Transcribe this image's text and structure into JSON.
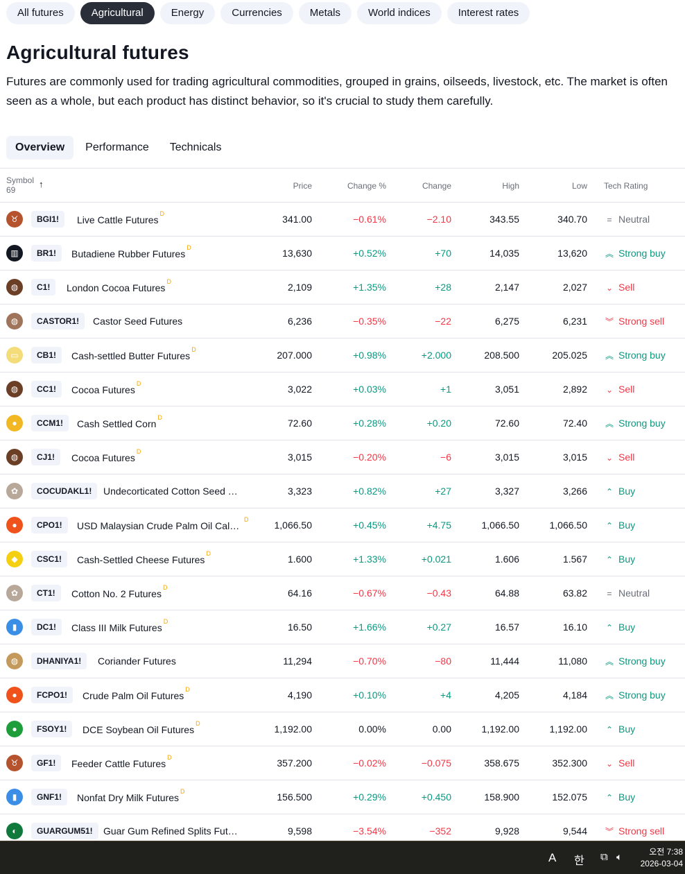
{
  "category_pills": [
    {
      "label": "All futures",
      "active": false
    },
    {
      "label": "Agricultural",
      "active": true
    },
    {
      "label": "Energy",
      "active": false
    },
    {
      "label": "Currencies",
      "active": false
    },
    {
      "label": "Metals",
      "active": false
    },
    {
      "label": "World indices",
      "active": false
    },
    {
      "label": "Interest rates",
      "active": false
    }
  ],
  "page": {
    "title": "Agricultural futures",
    "description": "Futures are commonly used for trading agricultural commodities, grouped in grains, oilseeds, livestock, etc. The market is often seen as a whole, but each product has distinct behavior, so it's crucial to study them carefully."
  },
  "tabs": [
    {
      "label": "Overview",
      "active": true
    },
    {
      "label": "Performance",
      "active": false
    },
    {
      "label": "Technicals",
      "active": false
    }
  ],
  "table": {
    "headers": {
      "symbol": "Symbol",
      "count": "69",
      "sort_arrow": "↑",
      "price": "Price",
      "change_pct": "Change %",
      "change": "Change",
      "high": "High",
      "low": "Low",
      "tech_rating": "Tech Rating"
    },
    "rows": [
      {
        "symbol": "BGI1!",
        "name": "Live Cattle Futures",
        "delayed": "D",
        "icon": "cow-icon",
        "icon_color": "#b5532e",
        "icon_glyph": "♉",
        "price": "341.00",
        "change_pct": "−0.61%",
        "change": "−2.10",
        "high": "343.55",
        "low": "340.70",
        "rating": "Neutral",
        "rating_icon": "=",
        "direction": "neg",
        "rating_class": "neu"
      },
      {
        "symbol": "BR1!",
        "name": "Butadiene Rubber Futures",
        "delayed": "D",
        "icon": "rubber-icon",
        "icon_color": "#131722",
        "icon_glyph": "▥",
        "price": "13,630",
        "change_pct": "+0.52%",
        "change": "+70",
        "high": "14,035",
        "low": "13,620",
        "rating": "Strong buy",
        "rating_icon": "︽",
        "direction": "pos",
        "rating_class": "pos"
      },
      {
        "symbol": "C1!",
        "name": "London Cocoa Futures",
        "delayed": "D",
        "icon": "cocoa-bean-icon",
        "icon_color": "#6b3e26",
        "icon_glyph": "◍",
        "price": "2,109",
        "change_pct": "+1.35%",
        "change": "+28",
        "high": "2,147",
        "low": "2,027",
        "rating": "Sell",
        "rating_icon": "⌄",
        "direction": "pos",
        "rating_class": "neg"
      },
      {
        "symbol": "CASTOR1!",
        "name": "Castor Seed Futures",
        "delayed": "",
        "icon": "seed-icon",
        "icon_color": "#a0745a",
        "icon_glyph": "◍",
        "price": "6,236",
        "change_pct": "−0.35%",
        "change": "−22",
        "high": "6,275",
        "low": "6,231",
        "rating": "Strong sell",
        "rating_icon": "︾",
        "direction": "neg",
        "rating_class": "neg"
      },
      {
        "symbol": "CB1!",
        "name": "Cash-settled Butter Futures",
        "delayed": "D",
        "icon": "butter-icon",
        "icon_color": "#f5dc7a",
        "icon_glyph": "▭",
        "price": "207.000",
        "change_pct": "+0.98%",
        "change": "+2.000",
        "high": "208.500",
        "low": "205.025",
        "rating": "Strong buy",
        "rating_icon": "︽",
        "direction": "pos",
        "rating_class": "pos"
      },
      {
        "symbol": "CC1!",
        "name": "Cocoa Futures",
        "delayed": "D",
        "icon": "cocoa-bean-icon",
        "icon_color": "#6b3e26",
        "icon_glyph": "◍",
        "price": "3,022",
        "change_pct": "+0.03%",
        "change": "+1",
        "high": "3,051",
        "low": "2,892",
        "rating": "Sell",
        "rating_icon": "⌄",
        "direction": "pos",
        "rating_class": "neg"
      },
      {
        "symbol": "CCM1!",
        "name": "Cash Settled Corn",
        "delayed": "D",
        "icon": "corn-icon",
        "icon_color": "#f2b824",
        "icon_glyph": "●",
        "price": "72.60",
        "change_pct": "+0.28%",
        "change": "+0.20",
        "high": "72.60",
        "low": "72.40",
        "rating": "Strong buy",
        "rating_icon": "︽",
        "direction": "pos",
        "rating_class": "pos"
      },
      {
        "symbol": "CJ1!",
        "name": "Cocoa Futures",
        "delayed": "D",
        "icon": "cocoa-bean-icon",
        "icon_color": "#6b3e26",
        "icon_glyph": "◍",
        "price": "3,015",
        "change_pct": "−0.20%",
        "change": "−6",
        "high": "3,015",
        "low": "3,015",
        "rating": "Sell",
        "rating_icon": "⌄",
        "direction": "neg",
        "rating_class": "neg"
      },
      {
        "symbol": "COCUDAKL1!",
        "name": "Undecorticated Cotton Seed Oil Cake Futures",
        "delayed": "",
        "icon": "cotton-icon",
        "icon_color": "#b8a89a",
        "icon_glyph": "✿",
        "price": "3,323",
        "change_pct": "+0.82%",
        "change": "+27",
        "high": "3,327",
        "low": "3,266",
        "rating": "Buy",
        "rating_icon": "⌃",
        "direction": "pos",
        "rating_class": "pos"
      },
      {
        "symbol": "CPO1!",
        "name": "USD Malaysian Crude Palm Oil Calendar Futures",
        "delayed": "D",
        "icon": "palm-oil-drop-icon",
        "icon_color": "#f0521c",
        "icon_glyph": "●",
        "price": "1,066.50",
        "change_pct": "+0.45%",
        "change": "+4.75",
        "high": "1,066.50",
        "low": "1,066.50",
        "rating": "Buy",
        "rating_icon": "⌃",
        "direction": "pos",
        "rating_class": "pos"
      },
      {
        "symbol": "CSC1!",
        "name": "Cash-Settled Cheese Futures",
        "delayed": "D",
        "icon": "cheese-icon",
        "icon_color": "#f5d012",
        "icon_glyph": "◆",
        "price": "1.600",
        "change_pct": "+1.33%",
        "change": "+0.021",
        "high": "1.606",
        "low": "1.567",
        "rating": "Buy",
        "rating_icon": "⌃",
        "direction": "pos",
        "rating_class": "pos"
      },
      {
        "symbol": "CT1!",
        "name": "Cotton No. 2 Futures",
        "delayed": "D",
        "icon": "cotton-icon",
        "icon_color": "#b8a89a",
        "icon_glyph": "✿",
        "price": "64.16",
        "change_pct": "−0.67%",
        "change": "−0.43",
        "high": "64.88",
        "low": "63.82",
        "rating": "Neutral",
        "rating_icon": "=",
        "direction": "neg",
        "rating_class": "neu"
      },
      {
        "symbol": "DC1!",
        "name": "Class III Milk Futures",
        "delayed": "D",
        "icon": "milk-bottle-icon",
        "icon_color": "#3a8ee6",
        "icon_glyph": "▮",
        "price": "16.50",
        "change_pct": "+1.66%",
        "change": "+0.27",
        "high": "16.57",
        "low": "16.10",
        "rating": "Buy",
        "rating_icon": "⌃",
        "direction": "pos",
        "rating_class": "pos"
      },
      {
        "symbol": "DHANIYA1!",
        "name": "Coriander Futures",
        "delayed": "",
        "icon": "seed-icon",
        "icon_color": "#c49a5c",
        "icon_glyph": "◍",
        "price": "11,294",
        "change_pct": "−0.70%",
        "change": "−80",
        "high": "11,444",
        "low": "11,080",
        "rating": "Strong buy",
        "rating_icon": "︽",
        "direction": "neg",
        "rating_class": "pos"
      },
      {
        "symbol": "FCPO1!",
        "name": "Crude Palm Oil Futures",
        "delayed": "D",
        "icon": "palm-oil-drop-icon",
        "icon_color": "#f0521c",
        "icon_glyph": "●",
        "price": "4,190",
        "change_pct": "+0.10%",
        "change": "+4",
        "high": "4,205",
        "low": "4,184",
        "rating": "Strong buy",
        "rating_icon": "︽",
        "direction": "pos",
        "rating_class": "pos"
      },
      {
        "symbol": "FSOY1!",
        "name": "DCE Soybean Oil Futures",
        "delayed": "D",
        "icon": "soybean-oil-drop-icon",
        "icon_color": "#1e9e3a",
        "icon_glyph": "●",
        "price": "1,192.00",
        "change_pct": "0.00%",
        "change": "0.00",
        "high": "1,192.00",
        "low": "1,192.00",
        "rating": "Buy",
        "rating_icon": "⌃",
        "direction": "flat",
        "rating_class": "pos"
      },
      {
        "symbol": "GF1!",
        "name": "Feeder Cattle Futures",
        "delayed": "D",
        "icon": "cow-icon",
        "icon_color": "#b5532e",
        "icon_glyph": "♉",
        "price": "357.200",
        "change_pct": "−0.02%",
        "change": "−0.075",
        "high": "358.675",
        "low": "352.300",
        "rating": "Sell",
        "rating_icon": "⌄",
        "direction": "neg",
        "rating_class": "neg"
      },
      {
        "symbol": "GNF1!",
        "name": "Nonfat Dry Milk Futures",
        "delayed": "D",
        "icon": "milk-bottle-icon",
        "icon_color": "#3a8ee6",
        "icon_glyph": "▮",
        "price": "156.500",
        "change_pct": "+0.29%",
        "change": "+0.450",
        "high": "158.900",
        "low": "152.075",
        "rating": "Buy",
        "rating_icon": "⌃",
        "direction": "pos",
        "rating_class": "pos"
      },
      {
        "symbol": "GUARGUM51!",
        "name": "Guar Gum Refined Splits Futures",
        "delayed": "",
        "icon": "guar-gum-icon",
        "icon_color": "#0f7a3c",
        "icon_glyph": "◐",
        "price": "9,598",
        "change_pct": "−3.54%",
        "change": "−352",
        "high": "9,928",
        "low": "9,544",
        "rating": "Strong sell",
        "rating_icon": "︾",
        "direction": "neg",
        "rating_class": "neg"
      }
    ]
  },
  "taskbar": {
    "ime_mode": "A",
    "ime_lang": "한",
    "time": "오전 7:38",
    "date": "2026-03-04"
  },
  "colors": {
    "positive": "#089981",
    "negative": "#f23645",
    "neutral": "#6a6d78",
    "active_pill": "#2a2e39",
    "pill_bg": "#f0f3fa",
    "delayed_marker": "#f7a600"
  }
}
